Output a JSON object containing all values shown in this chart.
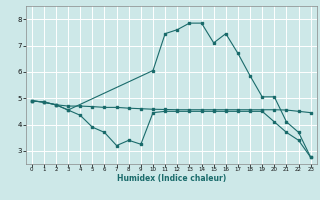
{
  "xlabel": "Humidex (Indice chaleur)",
  "bg_color": "#cde8e8",
  "grid_color": "#ffffff",
  "line_color": "#1a6b6b",
  "xlim": [
    -0.5,
    23.5
  ],
  "ylim": [
    2.5,
    8.5
  ],
  "yticks": [
    3,
    4,
    5,
    6,
    7,
    8
  ],
  "xticks": [
    0,
    1,
    2,
    3,
    4,
    5,
    6,
    7,
    8,
    9,
    10,
    11,
    12,
    13,
    14,
    15,
    16,
    17,
    18,
    19,
    20,
    21,
    22,
    23
  ],
  "line1_x": [
    0,
    1,
    2,
    3,
    4,
    5,
    6,
    7,
    8,
    9,
    10,
    11,
    12,
    13,
    14,
    15,
    16,
    17,
    18,
    19,
    20,
    21,
    22,
    23
  ],
  "line1_y": [
    4.9,
    4.85,
    4.75,
    4.7,
    4.7,
    4.68,
    4.65,
    4.65,
    4.62,
    4.6,
    4.58,
    4.57,
    4.56,
    4.56,
    4.56,
    4.56,
    4.56,
    4.56,
    4.56,
    4.56,
    4.56,
    4.55,
    4.5,
    4.45
  ],
  "line2_x": [
    0,
    1,
    2,
    3,
    4,
    5,
    6,
    7,
    8,
    9,
    10,
    11,
    12,
    13,
    14,
    15,
    16,
    17,
    18,
    19,
    20,
    21,
    22,
    23
  ],
  "line2_y": [
    4.9,
    4.85,
    4.75,
    4.55,
    4.35,
    3.9,
    3.7,
    3.2,
    3.4,
    3.25,
    4.45,
    4.5,
    4.5,
    4.5,
    4.5,
    4.5,
    4.5,
    4.5,
    4.5,
    4.5,
    4.1,
    3.7,
    3.4,
    2.75
  ],
  "line3_x": [
    0,
    1,
    2,
    3,
    10,
    11,
    12,
    13,
    14,
    15,
    16,
    17,
    18,
    19,
    20,
    21,
    22,
    23
  ],
  "line3_y": [
    4.9,
    4.85,
    4.75,
    4.55,
    6.05,
    7.45,
    7.6,
    7.85,
    7.85,
    7.1,
    7.45,
    6.7,
    5.85,
    5.05,
    5.05,
    4.1,
    3.7,
    2.75
  ]
}
